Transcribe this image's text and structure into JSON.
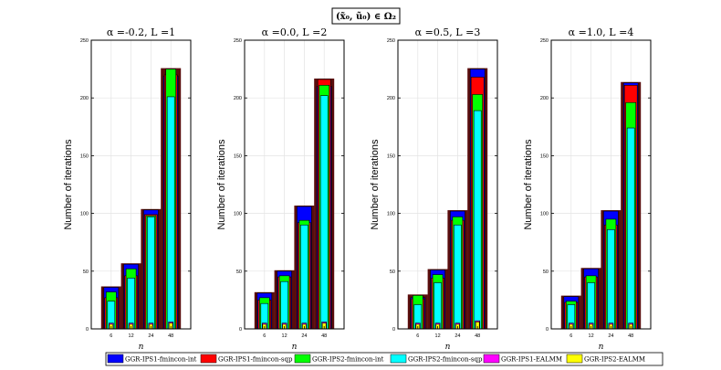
{
  "figure": {
    "suptitle": "(x̃₀, ũ₀) ∈ Ω₂"
  },
  "legend": [
    {
      "name": "GGR-IPS1-fmincon-int",
      "color": "#0000ff"
    },
    {
      "name": "GGR-IPS1-fmincon-sqp",
      "color": "#ff0000"
    },
    {
      "name": "GGR-IPS2-fmincon-int",
      "color": "#00ff00"
    },
    {
      "name": "GGR-IPS2-fmincon-sqp",
      "color": "#00ffff"
    },
    {
      "name": "GGR-IPS1-EALMM",
      "color": "#ff00ff"
    },
    {
      "name": "GGR-IPS2-EALMM",
      "color": "#ffff00"
    }
  ],
  "chart_data": [
    {
      "type": "bar",
      "title": "α =-0.2, L =1",
      "xlabel": "n",
      "ylabel": "Number of iterations",
      "categories": [
        "6",
        "12",
        "24",
        "48"
      ],
      "ylim": [
        0,
        250
      ],
      "yticks": [
        "0",
        "50",
        "100",
        "150",
        "200",
        "250"
      ],
      "grid": true,
      "series": [
        {
          "name": "GGR-IPS1-fmincon-int",
          "values": [
            36,
            56,
            103,
            219
          ]
        },
        {
          "name": "GGR-IPS1-fmincon-sqp",
          "values": [
            27,
            46,
            99,
            220
          ]
        },
        {
          "name": "GGR-IPS2-fmincon-int",
          "values": [
            32,
            52,
            98,
            225
          ]
        },
        {
          "name": "GGR-IPS2-fmincon-sqp",
          "values": [
            24,
            44,
            97,
            201
          ]
        },
        {
          "name": "GGR-IPS1-EALMM",
          "values": [
            5,
            5,
            5,
            6
          ]
        },
        {
          "name": "GGR-IPS2-EALMM",
          "values": [
            4,
            4,
            4,
            5
          ]
        }
      ]
    },
    {
      "type": "bar",
      "title": "α =0.0, L =2",
      "xlabel": "n",
      "ylabel": "Number of iterations",
      "categories": [
        "6",
        "12",
        "24",
        "48"
      ],
      "ylim": [
        0,
        250
      ],
      "yticks": [
        "0",
        "50",
        "100",
        "150",
        "200",
        "250"
      ],
      "grid": true,
      "series": [
        {
          "name": "GGR-IPS1-fmincon-int",
          "values": [
            31,
            50,
            106,
            210
          ]
        },
        {
          "name": "GGR-IPS1-fmincon-sqp",
          "values": [
            25,
            45,
            92,
            216
          ]
        },
        {
          "name": "GGR-IPS2-fmincon-int",
          "values": [
            27,
            46,
            94,
            211
          ]
        },
        {
          "name": "GGR-IPS2-fmincon-sqp",
          "values": [
            22,
            41,
            90,
            202
          ]
        },
        {
          "name": "GGR-IPS1-EALMM",
          "values": [
            5,
            5,
            5,
            6
          ]
        },
        {
          "name": "GGR-IPS2-EALMM",
          "values": [
            4,
            4,
            4,
            5
          ]
        }
      ]
    },
    {
      "type": "bar",
      "title": "α =0.5, L =3",
      "xlabel": "n",
      "ylabel": "Number of iterations",
      "categories": [
        "6",
        "12",
        "24",
        "48"
      ],
      "ylim": [
        0,
        250
      ],
      "yticks": [
        "0",
        "50",
        "100",
        "150",
        "200",
        "250"
      ],
      "grid": true,
      "series": [
        {
          "name": "GGR-IPS1-fmincon-int",
          "values": [
            27,
            51,
            102,
            225
          ]
        },
        {
          "name": "GGR-IPS1-fmincon-sqp",
          "values": [
            26,
            44,
            94,
            218
          ]
        },
        {
          "name": "GGR-IPS2-fmincon-int",
          "values": [
            29,
            47,
            97,
            203
          ]
        },
        {
          "name": "GGR-IPS2-fmincon-sqp",
          "values": [
            21,
            40,
            90,
            189
          ]
        },
        {
          "name": "GGR-IPS1-EALMM",
          "values": [
            5,
            5,
            5,
            7
          ]
        },
        {
          "name": "GGR-IPS2-EALMM",
          "values": [
            4,
            4,
            4,
            6
          ]
        }
      ]
    },
    {
      "type": "bar",
      "title": "α =1.0, L =4",
      "xlabel": "n",
      "ylabel": "Number of iterations",
      "categories": [
        "6",
        "12",
        "24",
        "48"
      ],
      "ylim": [
        0,
        250
      ],
      "yticks": [
        "0",
        "50",
        "100",
        "150",
        "200",
        "250"
      ],
      "grid": true,
      "series": [
        {
          "name": "GGR-IPS1-fmincon-int",
          "values": [
            28,
            52,
            102,
            213
          ]
        },
        {
          "name": "GGR-IPS1-fmincon-sqp",
          "values": [
            23,
            45,
            90,
            211
          ]
        },
        {
          "name": "GGR-IPS2-fmincon-int",
          "values": [
            24,
            46,
            95,
            196
          ]
        },
        {
          "name": "GGR-IPS2-fmincon-sqp",
          "values": [
            21,
            40,
            86,
            174
          ]
        },
        {
          "name": "GGR-IPS1-EALMM",
          "values": [
            5,
            5,
            5,
            5
          ]
        },
        {
          "name": "GGR-IPS2-EALMM",
          "values": [
            4,
            4,
            4,
            4
          ]
        }
      ]
    }
  ]
}
